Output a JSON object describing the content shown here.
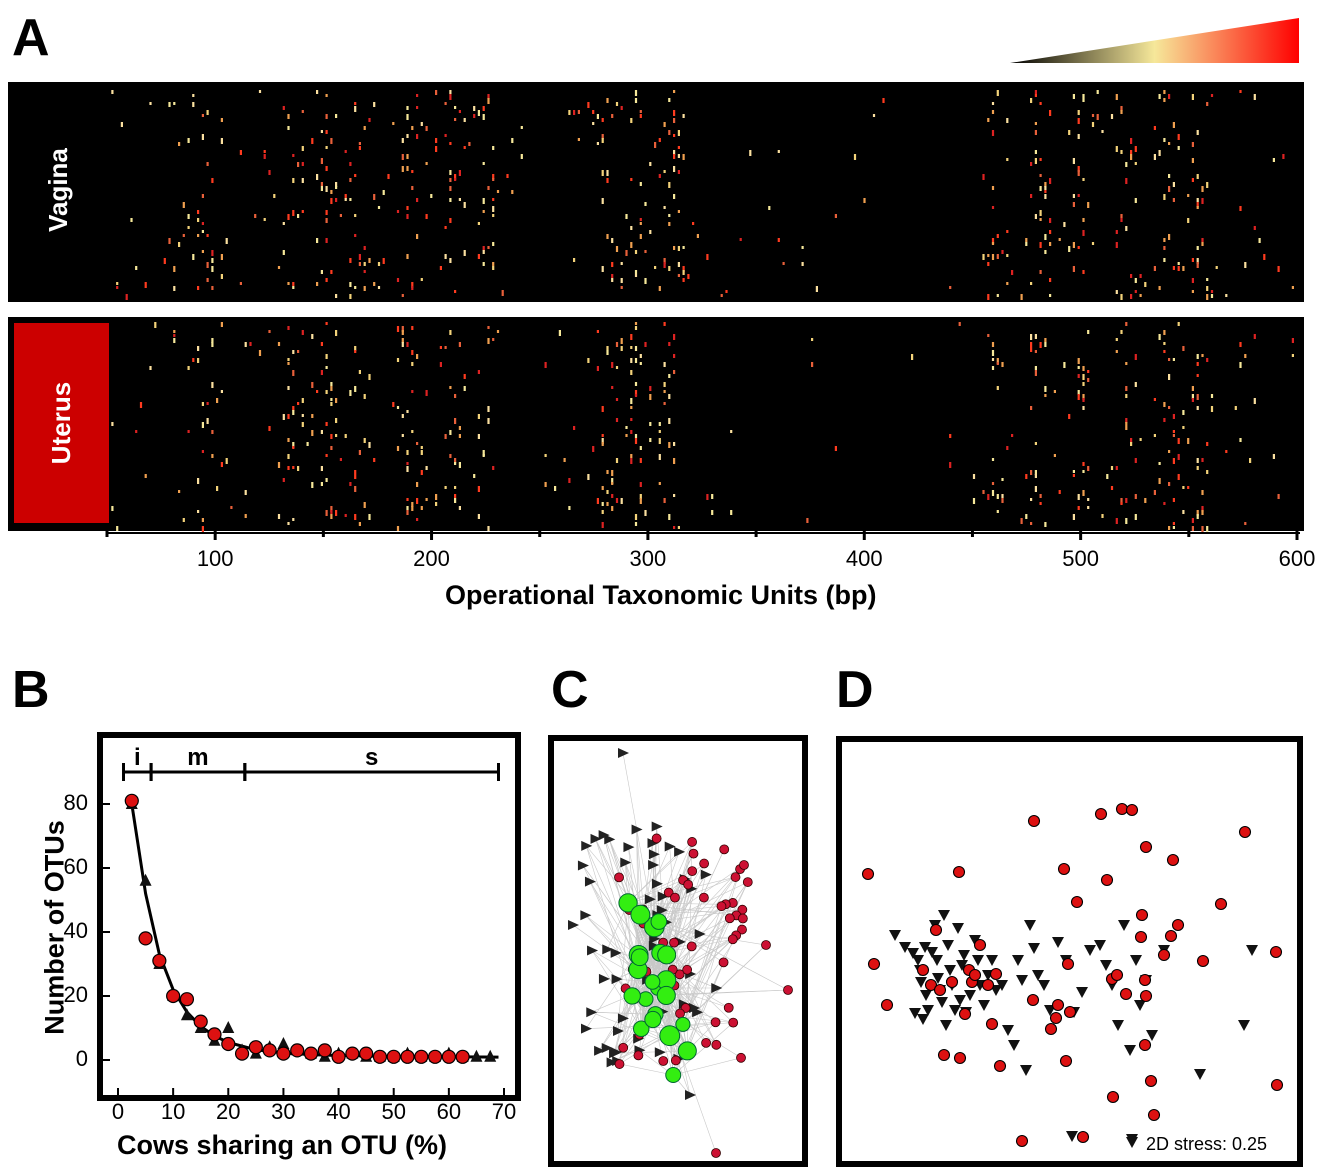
{
  "panels": {
    "a": {
      "letter": "A"
    },
    "b": {
      "letter": "B"
    },
    "c": {
      "letter": "C"
    },
    "d": {
      "letter": "D"
    }
  },
  "colors": {
    "heat_bg": "#000000",
    "gradient": [
      "#000000",
      "#f6e89a",
      "#ff0000"
    ],
    "uterus_tab": "#cc0000",
    "red_marker": "#dd1111",
    "green_node": "#33ee11",
    "crimson_node": "#cc1133",
    "edge": "#c8c8c8"
  },
  "chart_data": [
    {
      "id": "A",
      "type": "heatmap",
      "rows": [
        "Vagina",
        "Uterus"
      ],
      "xlabel": "Operational Taxonomic Units (bp)",
      "xlim": [
        50,
        600
      ],
      "xticks": [
        100,
        200,
        300,
        400,
        500,
        600
      ],
      "color_scale": [
        "#000000",
        "#f6e89a",
        "#ff0000"
      ],
      "dense_bands_bp": [
        95,
        135,
        150,
        165,
        190,
        210,
        225,
        280,
        295,
        310,
        460,
        480,
        500,
        520,
        540,
        555
      ]
    },
    {
      "id": "B",
      "type": "scatter",
      "xlabel": "Cows sharing an OTU (%)",
      "ylabel": "Number of OTUs",
      "xlim": [
        0,
        70
      ],
      "ylim": [
        -5,
        95
      ],
      "xticks": [
        0,
        10,
        20,
        30,
        40,
        50,
        60,
        70
      ],
      "yticks": [
        0,
        20,
        40,
        60,
        80
      ],
      "segments": [
        {
          "label": "i",
          "x": [
            1,
            6
          ]
        },
        {
          "label": "m",
          "x": [
            6,
            23
          ]
        },
        {
          "label": "s",
          "x": [
            23,
            69
          ]
        }
      ],
      "series": [
        {
          "marker": "circle",
          "color": "#dd1111",
          "x": [
            2.5,
            5,
            7.5,
            10,
            12.5,
            15,
            17.5,
            20,
            22.5,
            25,
            27.5,
            30,
            32.5,
            35,
            37.5,
            40,
            42.5,
            45,
            47.5,
            50,
            52.5,
            55,
            57.5,
            60,
            62.5
          ],
          "y": [
            81,
            38,
            31,
            20,
            19,
            12,
            8,
            5,
            2,
            4,
            3,
            2,
            3,
            2,
            3,
            1,
            2,
            2,
            1,
            1,
            1,
            1,
            1,
            1,
            1
          ]
        },
        {
          "marker": "triangle",
          "color": "#111111",
          "x": [
            2.5,
            5,
            7.5,
            10,
            12.5,
            15,
            17.5,
            20,
            22.5,
            25,
            27.5,
            30,
            32.5,
            35,
            37.5,
            40,
            42.5,
            45,
            47.5,
            50,
            52.5,
            55,
            57.5,
            60,
            62.5,
            65,
            67.5
          ],
          "y": [
            80,
            56,
            30,
            20,
            14,
            10,
            6,
            10,
            3,
            2,
            4,
            5,
            3,
            2,
            1,
            2,
            2,
            1,
            1,
            1,
            2,
            1,
            1,
            2,
            1,
            1,
            1
          ]
        }
      ],
      "fit": {
        "x": [
          2.5,
          5,
          7.5,
          10,
          12.5,
          15,
          17.5,
          20,
          25,
          30,
          35,
          40,
          50,
          60,
          69
        ],
        "y": [
          80,
          52,
          33,
          22,
          15,
          10.5,
          7.5,
          5.5,
          3.2,
          2.2,
          1.7,
          1.4,
          1.1,
          1,
          0.9
        ]
      }
    },
    {
      "id": "C",
      "type": "network",
      "node_groups": [
        {
          "shape": "circle-large",
          "color": "#33ee11"
        },
        {
          "shape": "circle-small",
          "color": "#cc1133"
        },
        {
          "shape": "triangle-right",
          "color": "#222222"
        }
      ]
    },
    {
      "id": "D",
      "type": "scatter",
      "annotation": "2D stress: 0.25",
      "series": [
        {
          "marker": "circle",
          "color": "#dd1111",
          "x": [
            868,
            874,
            887,
            923,
            931,
            936,
            940,
            944,
            952,
            959,
            960,
            965,
            969,
            972,
            975,
            980,
            988,
            992,
            996,
            1000,
            1022,
            1033,
            1034,
            1051,
            1056,
            1058,
            1064,
            1066,
            1068,
            1070,
            1077,
            1083,
            1101,
            1107,
            1112,
            1113,
            1117,
            1122,
            1126,
            1132,
            1141,
            1142,
            1145,
            1145,
            1146,
            1146,
            1151,
            1154,
            1164,
            1171,
            1173,
            1178,
            1203,
            1221,
            1245,
            1276,
            1277
          ],
          "y": [
            874,
            964,
            1005,
            970,
            985,
            930,
            990,
            1055,
            982,
            872,
            1058,
            1014,
            970,
            982,
            975,
            945,
            985,
            1024,
            974,
            1066,
            1141,
            1000,
            821,
            1029,
            1018,
            1005,
            869,
            1061,
            964,
            1012,
            902,
            1137,
            814,
            880,
            979,
            1097,
            975,
            809,
            994,
            810,
            937,
            915,
            1045,
            980,
            996,
            847,
            1081,
            1115,
            955,
            936,
            860,
            925,
            961,
            904,
            832,
            952,
            1085
          ]
        },
        {
          "marker": "triangle-down",
          "color": "#111111",
          "x": [
            895,
            905,
            913,
            915,
            918,
            920,
            921,
            923,
            925,
            926,
            928,
            932,
            935,
            937,
            938,
            940,
            942,
            944,
            946,
            948,
            950,
            952,
            955,
            958,
            960,
            962,
            964,
            966,
            970,
            975,
            978,
            980,
            984,
            988,
            992,
            996,
            1002,
            1008,
            1014,
            1018,
            1022,
            1026,
            1030,
            1034,
            1038,
            1044,
            1050,
            1058,
            1066,
            1074,
            1082,
            1090,
            1100,
            1106,
            1112,
            1118,
            1124,
            1130,
            1136,
            1140,
            1146,
            1152,
            1164,
            1200,
            1244,
            1252,
            1072,
            1132
          ],
          "y": [
            935,
            947,
            953,
            1013,
            960,
            970,
            982,
            1019,
            947,
            995,
            1010,
            952,
            925,
            960,
            978,
            990,
            1002,
            915,
            1025,
            945,
            970,
            985,
            1010,
            928,
            1000,
            965,
            955,
            1012,
            995,
            940,
            960,
            985,
            1005,
            975,
            960,
            990,
            985,
            1030,
            1045,
            960,
            980,
            1070,
            925,
            948,
            975,
            985,
            1010,
            942,
            960,
            1012,
            992,
            950,
            945,
            965,
            985,
            1025,
            925,
            1050,
            960,
            1005,
            980,
            1035,
            950,
            1074,
            1025,
            950,
            1136,
            1139
          ]
        }
      ]
    }
  ]
}
